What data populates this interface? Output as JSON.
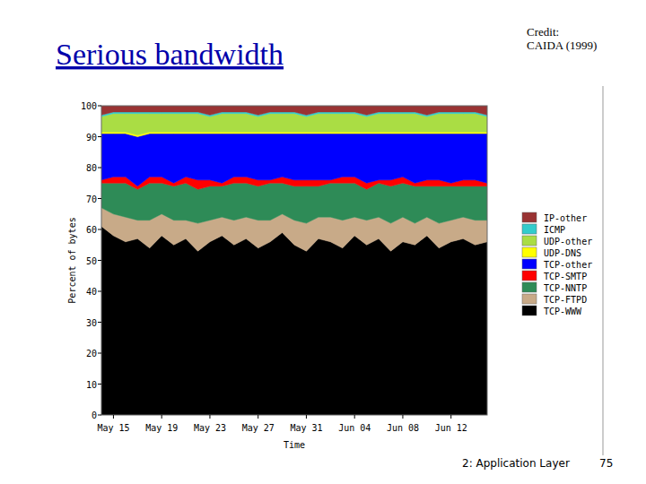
{
  "chart_data": {
    "type": "area",
    "title": "Serious bandwidth",
    "stacked": true,
    "grid": false,
    "legend": "right",
    "x_label": "Time",
    "y_label": "Percent of bytes",
    "categories": [
      null,
      "May 15",
      null,
      null,
      null,
      "May 19",
      null,
      null,
      null,
      "May 23",
      null,
      null,
      null,
      "May 27",
      null,
      null,
      null,
      "May 31",
      null,
      null,
      null,
      "Jun 04",
      null,
      null,
      null,
      "Jun 08",
      null,
      null,
      null,
      "Jun 12",
      null,
      null,
      null
    ],
    "ylim": [
      0,
      100
    ],
    "yticks": [
      0,
      10,
      20,
      30,
      40,
      50,
      60,
      70,
      80,
      90,
      100
    ],
    "series": [
      {
        "name": "TCP-WWW",
        "color": "#000000",
        "values": [
          61,
          58,
          56,
          57,
          54,
          58,
          55,
          57,
          53,
          56,
          58,
          55,
          57,
          54,
          56,
          59,
          55,
          53,
          57,
          56,
          54,
          58,
          55,
          57,
          53,
          56,
          55,
          58,
          54,
          56,
          57,
          55,
          56
        ]
      },
      {
        "name": "TCP-FTPD",
        "color": "#c8aa88",
        "values": [
          6,
          7,
          8,
          6,
          9,
          7,
          8,
          6,
          9,
          7,
          6,
          8,
          7,
          9,
          7,
          6,
          8,
          9,
          7,
          8,
          9,
          6,
          8,
          7,
          9,
          8,
          7,
          6,
          8,
          7,
          7,
          8,
          7
        ]
      },
      {
        "name": "TCP-NNTP",
        "color": "#2e8b57",
        "values": [
          8,
          10,
          11,
          10,
          12,
          10,
          11,
          12,
          11,
          11,
          10,
          12,
          11,
          11,
          12,
          10,
          11,
          12,
          10,
          11,
          12,
          11,
          10,
          11,
          12,
          11,
          12,
          10,
          12,
          11,
          10,
          11,
          11
        ]
      },
      {
        "name": "TCP-SMTP",
        "color": "#ff0000",
        "values": [
          1,
          2,
          2,
          1,
          2,
          2,
          1,
          2,
          3,
          2,
          1,
          2,
          2,
          2,
          1,
          2,
          2,
          2,
          2,
          1,
          2,
          2,
          2,
          1,
          2,
          2,
          1,
          2,
          2,
          1,
          2,
          2,
          1
        ]
      },
      {
        "name": "TCP-other",
        "color": "#0000ff",
        "values": [
          15,
          14,
          14,
          16,
          14,
          14,
          16,
          14,
          15,
          15,
          16,
          14,
          14,
          15,
          15,
          14,
          15,
          15,
          15,
          15,
          14,
          14,
          16,
          15,
          15,
          14,
          16,
          15,
          15,
          16,
          15,
          15,
          16
        ]
      },
      {
        "name": "UDP-DNS",
        "color": "#ffff00",
        "values": [
          0.5,
          0.5,
          0.5,
          0.5,
          0.5,
          0.5,
          0.5,
          0.5,
          0.5,
          0.5,
          0.5,
          0.5,
          0.5,
          0.5,
          0.5,
          0.5,
          0.5,
          0.5,
          0.5,
          0.5,
          0.5,
          0.5,
          0.5,
          0.5,
          0.5,
          0.5,
          0.5,
          0.5,
          0.5,
          0.5,
          0.5,
          0.5,
          0.5
        ]
      },
      {
        "name": "UDP-other",
        "color": "#aadd44",
        "values": [
          5,
          6,
          6,
          7,
          6,
          6,
          6,
          6,
          6,
          5,
          6,
          6,
          6,
          5,
          6,
          6,
          6,
          5,
          6,
          6,
          6,
          6,
          5,
          6,
          6,
          6,
          6,
          5,
          6,
          6,
          6,
          6,
          5
        ]
      },
      {
        "name": "ICMP",
        "color": "#33cccc",
        "values": [
          0.5,
          0.5,
          0.5,
          0.5,
          0.5,
          0.5,
          0.5,
          0.5,
          0.5,
          0.5,
          0.5,
          0.5,
          0.5,
          0.5,
          0.5,
          0.5,
          0.5,
          0.5,
          0.5,
          0.5,
          0.5,
          0.5,
          0.5,
          0.5,
          0.5,
          0.5,
          0.5,
          0.5,
          0.5,
          0.5,
          0.5,
          0.5,
          0.5
        ]
      },
      {
        "name": "IP-other",
        "color": "#993333",
        "values": [
          3,
          2,
          2,
          2,
          2,
          2,
          2,
          2,
          2,
          3,
          2,
          2,
          2,
          3,
          2,
          2,
          2,
          3,
          2,
          2,
          2,
          2,
          3,
          2,
          2,
          2,
          2,
          3,
          2,
          2,
          2,
          2,
          3
        ]
      }
    ]
  },
  "slide": {
    "credit": [
      "Credit:",
      "CAIDA (1999)"
    ],
    "footer": "2: Application Layer",
    "page_number": 75
  }
}
